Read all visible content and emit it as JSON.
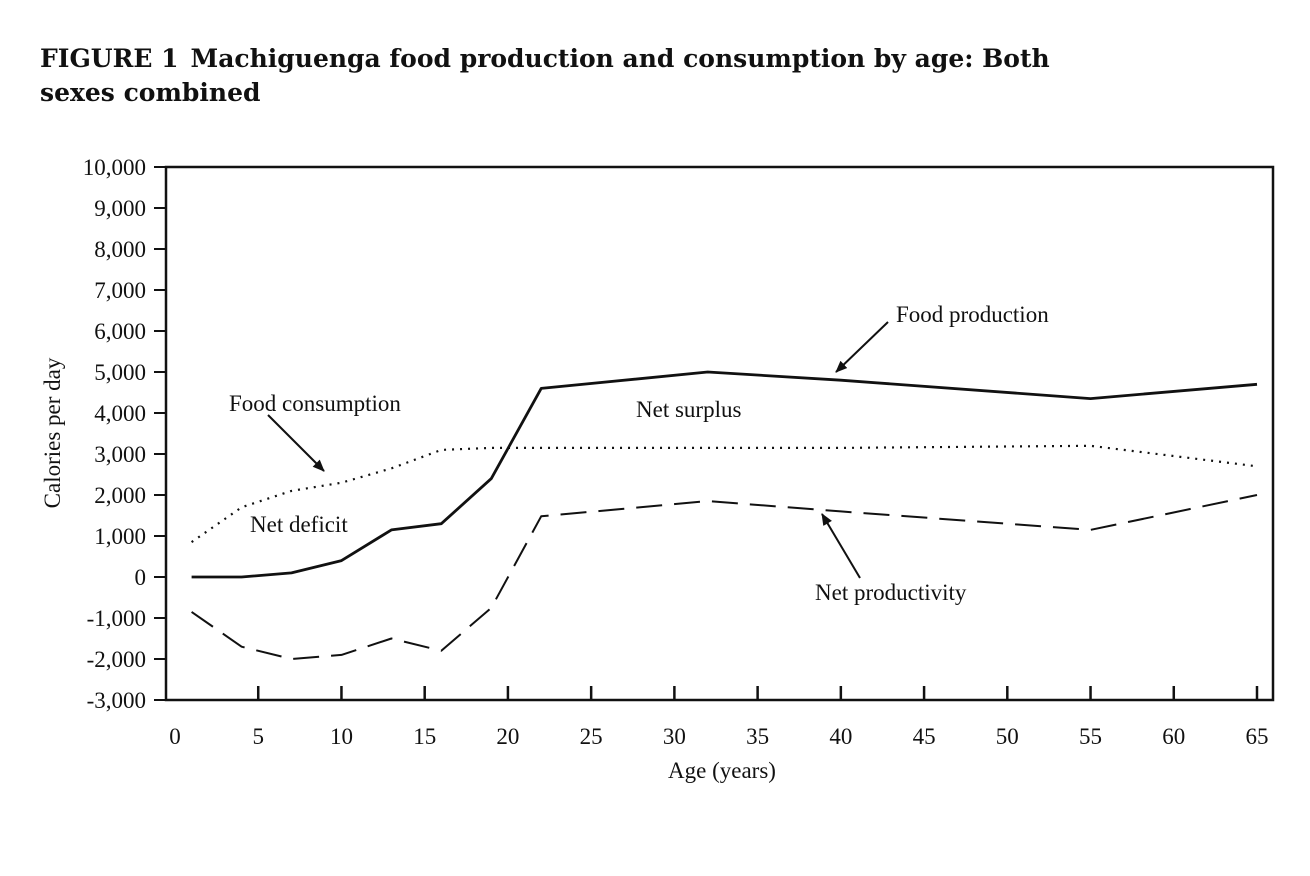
{
  "figure": {
    "number": "FIGURE 1",
    "title": "Machiguenga food production and consumption by age: Both sexes combined"
  },
  "chart_data": {
    "type": "line",
    "xlabel": "Age (years)",
    "ylabel": "Calories per day",
    "xlim": [
      0,
      65
    ],
    "ylim": [
      -3000,
      10000
    ],
    "x_ticks": [
      0,
      5,
      10,
      15,
      20,
      25,
      30,
      35,
      40,
      45,
      50,
      55,
      60,
      65
    ],
    "y_ticks": [
      10000,
      9000,
      8000,
      7000,
      6000,
      5000,
      4000,
      3000,
      2000,
      1000,
      0,
      -1000,
      -2000,
      -3000
    ],
    "x_tick_labels": [
      "0",
      "5",
      "10",
      "15",
      "20",
      "25",
      "30",
      "35",
      "40",
      "45",
      "50",
      "55",
      "60",
      "65"
    ],
    "y_tick_labels": [
      "10,000",
      "9,000",
      "8,000",
      "7,000",
      "6,000",
      "5,000",
      "4,000",
      "3,000",
      "2,000",
      "1,000",
      "0",
      "-1,000",
      "-2,000",
      "-3,000"
    ],
    "grid": false,
    "legend": "none (series labeled directly on the chart)",
    "series": [
      {
        "name": "Food production",
        "style": "solid",
        "x": [
          1,
          4,
          7,
          10,
          13,
          16,
          19,
          22,
          32,
          40,
          55,
          65
        ],
        "y": [
          0,
          0,
          100,
          400,
          1150,
          1300,
          2400,
          4600,
          5000,
          4800,
          4350,
          4700
        ]
      },
      {
        "name": "Food consumption",
        "style": "dotted",
        "x": [
          1,
          4,
          7,
          10,
          13,
          16,
          19,
          22,
          32,
          40,
          55,
          65
        ],
        "y": [
          850,
          1700,
          2100,
          2300,
          2650,
          3100,
          3150,
          3150,
          3150,
          3150,
          3200,
          2700
        ]
      },
      {
        "name": "Net productivity",
        "style": "dashed",
        "x": [
          1,
          4,
          7,
          10,
          13,
          16,
          19,
          22,
          32,
          40,
          55,
          65
        ],
        "y": [
          -850,
          -1700,
          -2000,
          -1900,
          -1500,
          -1800,
          -750,
          1480,
          1850,
          1600,
          1150,
          2000
        ]
      }
    ],
    "annotations": [
      {
        "text": "Food production",
        "arrow_to_series": "Food production"
      },
      {
        "text": "Food consumption",
        "arrow_to_series": "Food consumption"
      },
      {
        "text": "Net productivity",
        "arrow_to_series": "Net productivity"
      },
      {
        "text": "Net surplus"
      },
      {
        "text": "Net deficit"
      }
    ]
  }
}
